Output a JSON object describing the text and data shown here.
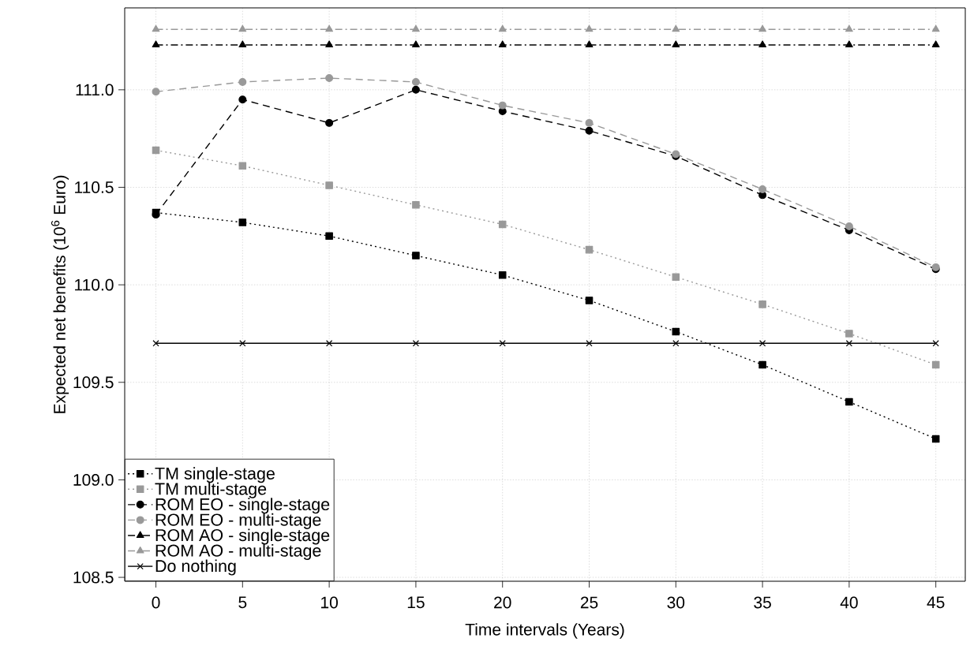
{
  "chart_data": {
    "type": "line",
    "xlabel": "Time intervals  (Years)",
    "ylabel": "Expected net benefits (10$^{6}$ Euro)",
    "x": [
      0,
      5,
      10,
      15,
      20,
      25,
      30,
      35,
      40,
      45
    ],
    "xlim": [
      -1.8,
      46.7
    ],
    "ylim": [
      108.48,
      111.42
    ],
    "xticks": [
      0,
      5,
      10,
      15,
      20,
      25,
      30,
      35,
      40,
      45
    ],
    "yticks": [
      {
        "value": 108.5,
        "label": "108.5"
      },
      {
        "value": 109,
        "label": "109.0"
      },
      {
        "value": 109.5,
        "label": "109.5"
      },
      {
        "value": 110,
        "label": "110.0"
      },
      {
        "value": 110.5,
        "label": "110.5"
      },
      {
        "value": 111,
        "label": "111.0"
      }
    ],
    "grid": true,
    "legend": "bottom left",
    "series": [
      {
        "name": "TM single-stage",
        "color": "#000000",
        "marker": "square",
        "line_style": "dotted",
        "values": [
          110.37,
          110.32,
          110.25,
          110.15,
          110.05,
          109.92,
          109.76,
          109.59,
          109.4,
          109.21
        ]
      },
      {
        "name": "TM multi-stage",
        "color": "#999999",
        "marker": "square",
        "line_style": "dotted",
        "values": [
          110.69,
          110.61,
          110.51,
          110.41,
          110.31,
          110.18,
          110.04,
          109.9,
          109.75,
          109.59
        ]
      },
      {
        "name": "ROM EO - single-stage",
        "color": "#000000",
        "marker": "circle",
        "line_style": "dashed",
        "values": [
          110.36,
          110.95,
          110.83,
          111.0,
          110.89,
          110.79,
          110.66,
          110.46,
          110.28,
          110.08
        ]
      },
      {
        "name": "ROM EO - multi-stage",
        "color": "#999999",
        "marker": "circle",
        "line_style": "dashed",
        "values": [
          110.99,
          111.04,
          111.06,
          111.04,
          110.92,
          110.83,
          110.67,
          110.49,
          110.3,
          110.09
        ]
      },
      {
        "name": "ROM AO - single-stage",
        "color": "#000000",
        "marker": "triangle",
        "line_style": "dashdot",
        "values": [
          111.23,
          111.23,
          111.23,
          111.23,
          111.23,
          111.23,
          111.23,
          111.23,
          111.23,
          111.23
        ]
      },
      {
        "name": "ROM AO - multi-stage",
        "color": "#999999",
        "marker": "triangle",
        "line_style": "dashdot",
        "values": [
          111.31,
          111.31,
          111.31,
          111.31,
          111.31,
          111.31,
          111.31,
          111.31,
          111.31,
          111.31
        ]
      },
      {
        "name": "Do nothing",
        "color": "#000000",
        "marker": "cross",
        "line_style": "solid",
        "values": [
          109.7,
          109.7,
          109.7,
          109.7,
          109.7,
          109.7,
          109.7,
          109.7,
          109.7,
          109.7
        ]
      }
    ]
  }
}
